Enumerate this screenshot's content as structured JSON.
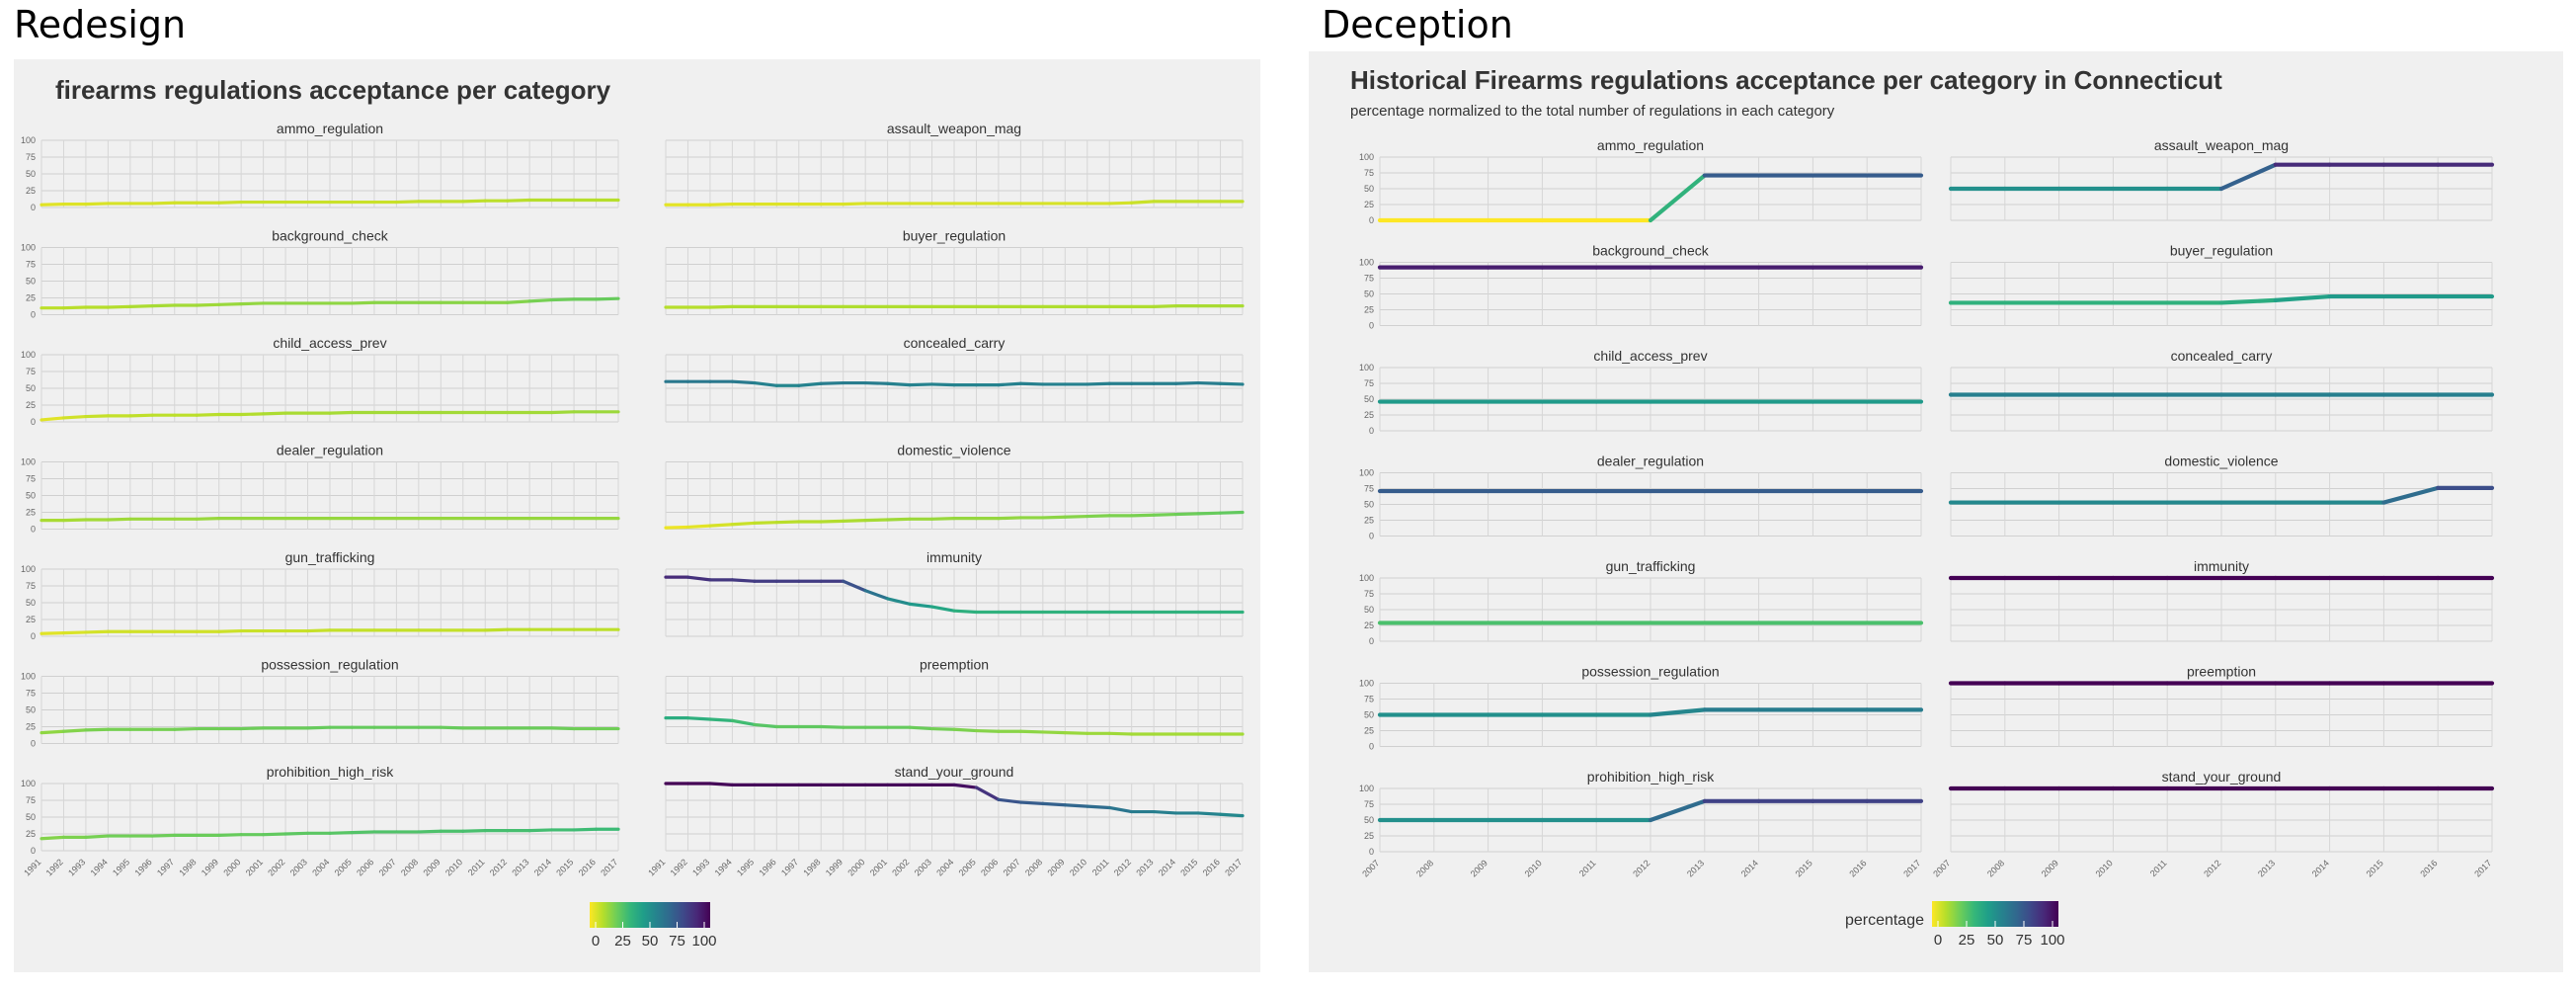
{
  "headings": {
    "left": "Redesign",
    "right": "Deception"
  },
  "colorscale": [
    "#fde725",
    "#b5de2b",
    "#6ece58",
    "#35b779",
    "#1f9e89",
    "#26828e",
    "#31688e",
    "#3e4989",
    "#482878",
    "#440154"
  ],
  "chart_data": [
    {
      "type": "line",
      "title": "firearms regulations acceptance per category",
      "subtitle": "",
      "legend": {
        "title": "",
        "ticks": [
          "0",
          "25",
          "50",
          "75",
          "100"
        ],
        "placement": "bottom"
      },
      "y_ticks": [
        "0",
        "25",
        "50",
        "75",
        "100"
      ],
      "ylim": [
        0,
        100
      ],
      "x": [
        "1991",
        "1992",
        "1993",
        "1994",
        "1995",
        "1996",
        "1997",
        "1998",
        "1999",
        "2000",
        "2001",
        "2002",
        "2003",
        "2004",
        "2005",
        "2006",
        "2007",
        "2008",
        "2009",
        "2010",
        "2011",
        "2012",
        "2013",
        "2014",
        "2015",
        "2016",
        "2017"
      ],
      "series": [
        {
          "name": "ammo_regulation",
          "values": [
            4,
            5,
            5,
            6,
            6,
            6,
            7,
            7,
            7,
            8,
            8,
            8,
            8,
            8,
            8,
            8,
            8,
            9,
            9,
            9,
            10,
            10,
            11,
            11,
            11,
            11,
            11
          ]
        },
        {
          "name": "assault_weapon_mag",
          "values": [
            4,
            4,
            4,
            5,
            5,
            5,
            5,
            5,
            5,
            6,
            6,
            6,
            6,
            6,
            6,
            6,
            6,
            6,
            6,
            6,
            6,
            7,
            9,
            9,
            9,
            9,
            9
          ]
        },
        {
          "name": "background_check",
          "values": [
            10,
            10,
            11,
            11,
            12,
            13,
            14,
            14,
            15,
            16,
            17,
            17,
            17,
            17,
            17,
            18,
            18,
            18,
            18,
            18,
            18,
            18,
            20,
            22,
            23,
            23,
            24
          ]
        },
        {
          "name": "buyer_regulation",
          "values": [
            11,
            11,
            11,
            12,
            12,
            12,
            12,
            12,
            12,
            12,
            12,
            12,
            12,
            12,
            12,
            12,
            12,
            12,
            12,
            12,
            12,
            12,
            12,
            13,
            13,
            13,
            13
          ]
        },
        {
          "name": "child_access_prev",
          "values": [
            3,
            6,
            8,
            9,
            9,
            10,
            10,
            10,
            11,
            11,
            12,
            13,
            13,
            13,
            14,
            14,
            14,
            14,
            14,
            14,
            14,
            14,
            14,
            14,
            15,
            15,
            15
          ]
        },
        {
          "name": "concealed_carry",
          "values": [
            60,
            60,
            60,
            60,
            58,
            54,
            54,
            57,
            58,
            58,
            57,
            55,
            56,
            55,
            55,
            55,
            57,
            56,
            56,
            56,
            57,
            57,
            57,
            57,
            58,
            57,
            56
          ]
        },
        {
          "name": "dealer_regulation",
          "values": [
            13,
            13,
            14,
            14,
            15,
            15,
            15,
            15,
            16,
            16,
            16,
            16,
            16,
            16,
            16,
            16,
            16,
            16,
            16,
            16,
            16,
            16,
            16,
            16,
            16,
            16,
            16
          ]
        },
        {
          "name": "domestic_violence",
          "values": [
            2,
            3,
            5,
            7,
            9,
            10,
            11,
            11,
            12,
            13,
            14,
            15,
            15,
            16,
            16,
            16,
            17,
            17,
            18,
            19,
            20,
            20,
            21,
            22,
            23,
            24,
            25
          ]
        },
        {
          "name": "gun_trafficking",
          "values": [
            4,
            5,
            6,
            7,
            7,
            7,
            7,
            7,
            7,
            8,
            8,
            8,
            8,
            9,
            9,
            9,
            9,
            9,
            9,
            9,
            9,
            10,
            10,
            10,
            10,
            10,
            10
          ]
        },
        {
          "name": "immunity",
          "values": [
            88,
            88,
            84,
            84,
            82,
            82,
            82,
            82,
            82,
            68,
            56,
            48,
            44,
            38,
            36,
            36,
            36,
            36,
            36,
            36,
            36,
            36,
            36,
            36,
            36,
            36,
            36
          ]
        },
        {
          "name": "possession_regulation",
          "values": [
            16,
            18,
            20,
            21,
            21,
            21,
            21,
            22,
            22,
            22,
            23,
            23,
            23,
            24,
            24,
            24,
            24,
            24,
            24,
            23,
            23,
            23,
            23,
            23,
            22,
            22,
            22
          ]
        },
        {
          "name": "preemption",
          "values": [
            38,
            38,
            36,
            34,
            28,
            25,
            25,
            25,
            24,
            24,
            24,
            24,
            22,
            21,
            19,
            18,
            18,
            17,
            16,
            15,
            15,
            14,
            14,
            14,
            14,
            14,
            14
          ]
        },
        {
          "name": "prohibition_high_risk",
          "values": [
            18,
            20,
            20,
            22,
            22,
            22,
            23,
            23,
            23,
            24,
            24,
            25,
            26,
            26,
            27,
            28,
            28,
            28,
            29,
            29,
            30,
            30,
            30,
            31,
            31,
            32,
            32
          ]
        },
        {
          "name": "stand_your_ground",
          "values": [
            100,
            100,
            100,
            98,
            98,
            98,
            98,
            98,
            98,
            98,
            98,
            98,
            98,
            98,
            94,
            76,
            72,
            70,
            68,
            66,
            64,
            58,
            58,
            56,
            56,
            54,
            52
          ]
        }
      ]
    },
    {
      "type": "line",
      "title": "Historical Firearms regulations acceptance per category in Connecticut",
      "subtitle": "percentage normalized to the total number of regulations in each category",
      "legend": {
        "title": "percentage",
        "ticks": [
          "0",
          "25",
          "50",
          "75",
          "100"
        ],
        "placement": "bottom"
      },
      "y_ticks": [
        "0",
        "25",
        "50",
        "75",
        "100"
      ],
      "ylim": [
        0,
        100
      ],
      "x": [
        "2007",
        "2008",
        "2009",
        "2010",
        "2011",
        "2012",
        "2013",
        "2014",
        "2015",
        "2016",
        "2017"
      ],
      "series": [
        {
          "name": "ammo_regulation",
          "values": [
            0,
            0,
            0,
            0,
            0,
            0,
            71,
            71,
            71,
            71,
            71
          ]
        },
        {
          "name": "assault_weapon_mag",
          "values": [
            50,
            50,
            50,
            50,
            50,
            50,
            88,
            88,
            88,
            88,
            88
          ]
        },
        {
          "name": "background_check",
          "values": [
            92,
            92,
            92,
            92,
            92,
            92,
            92,
            92,
            92,
            92,
            92
          ]
        },
        {
          "name": "buyer_regulation",
          "values": [
            36,
            36,
            36,
            36,
            36,
            36,
            40,
            46,
            46,
            46,
            46
          ]
        },
        {
          "name": "child_access_prev",
          "values": [
            46,
            46,
            46,
            46,
            46,
            46,
            46,
            46,
            46,
            46,
            46
          ]
        },
        {
          "name": "concealed_carry",
          "values": [
            57,
            57,
            57,
            57,
            57,
            57,
            57,
            57,
            57,
            57,
            57
          ]
        },
        {
          "name": "dealer_regulation",
          "values": [
            71,
            71,
            71,
            71,
            71,
            71,
            71,
            71,
            71,
            71,
            71
          ]
        },
        {
          "name": "domestic_violence",
          "values": [
            53,
            53,
            53,
            53,
            53,
            53,
            53,
            53,
            53,
            76,
            76
          ]
        },
        {
          "name": "gun_trafficking",
          "values": [
            29,
            29,
            29,
            29,
            29,
            29,
            29,
            29,
            29,
            29,
            29
          ]
        },
        {
          "name": "immunity",
          "values": [
            100,
            100,
            100,
            100,
            100,
            100,
            100,
            100,
            100,
            100,
            100
          ]
        },
        {
          "name": "possession_regulation",
          "values": [
            50,
            50,
            50,
            50,
            50,
            50,
            58,
            58,
            58,
            58,
            58
          ]
        },
        {
          "name": "preemption",
          "values": [
            100,
            100,
            100,
            100,
            100,
            100,
            100,
            100,
            100,
            100,
            100
          ]
        },
        {
          "name": "prohibition_high_risk",
          "values": [
            50,
            50,
            50,
            50,
            50,
            50,
            80,
            80,
            80,
            80,
            80
          ]
        },
        {
          "name": "stand_your_ground",
          "values": [
            100,
            100,
            100,
            100,
            100,
            100,
            100,
            100,
            100,
            100,
            100
          ]
        }
      ]
    }
  ]
}
